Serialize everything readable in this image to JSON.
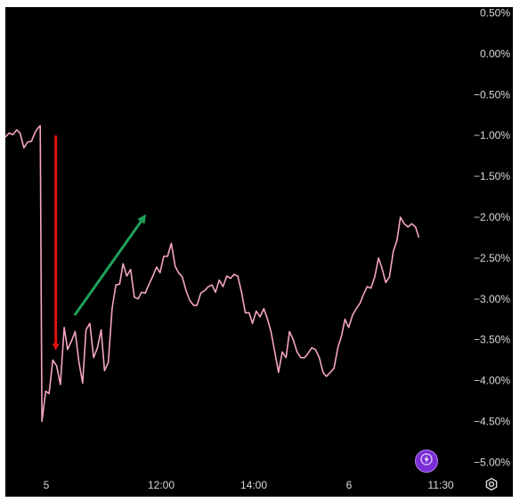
{
  "chart_data": {
    "type": "line",
    "title": "",
    "xlabel": "",
    "ylabel": "",
    "x_ticks": [
      "5",
      "12:00",
      "14:00",
      "6",
      "11:30"
    ],
    "y_ticks": [
      "0.50%",
      "0.00%",
      "−0.50%",
      "−1.00%",
      "−1.50%",
      "−2.00%",
      "−2.50%",
      "−3.00%",
      "−3.50%",
      "−4.00%",
      "−4.50%",
      "−5.00%"
    ],
    "ylim": [
      -5.4,
      0.55
    ],
    "x_range": [
      0,
      100
    ],
    "grid": false,
    "series": [
      {
        "color": "#f4a6c0",
        "points": [
          [
            0,
            -1.02
          ],
          [
            0.9,
            -0.97
          ],
          [
            1.8,
            -0.99
          ],
          [
            2.7,
            -0.93
          ],
          [
            3.5,
            -0.97
          ],
          [
            4.4,
            -1.15
          ],
          [
            5.3,
            -1.08
          ],
          [
            6.2,
            -1.07
          ],
          [
            7.1,
            -0.96
          ],
          [
            7.9,
            -0.9
          ],
          [
            8.3,
            -0.88
          ],
          [
            8.7,
            -4.5
          ],
          [
            9.6,
            -4.13
          ],
          [
            10.4,
            -4.16
          ],
          [
            11.3,
            -3.75
          ],
          [
            12.2,
            -3.82
          ],
          [
            13.1,
            -4.05
          ],
          [
            14.0,
            -3.35
          ],
          [
            14.8,
            -3.62
          ],
          [
            15.7,
            -3.52
          ],
          [
            16.6,
            -3.4
          ],
          [
            17.5,
            -3.77
          ],
          [
            18.4,
            -4.03
          ],
          [
            19.2,
            -3.38
          ],
          [
            20.1,
            -3.3
          ],
          [
            21.0,
            -3.72
          ],
          [
            21.9,
            -3.6
          ],
          [
            22.8,
            -3.38
          ],
          [
            23.6,
            -3.88
          ],
          [
            24.5,
            -3.78
          ],
          [
            25.4,
            -3.12
          ],
          [
            26.3,
            -2.83
          ],
          [
            27.2,
            -2.82
          ],
          [
            28.0,
            -2.57
          ],
          [
            28.9,
            -2.72
          ],
          [
            29.8,
            -2.64
          ],
          [
            30.7,
            -2.98
          ],
          [
            31.6,
            -3.0
          ],
          [
            32.4,
            -2.92
          ],
          [
            33.3,
            -2.93
          ],
          [
            34.2,
            -2.82
          ],
          [
            35.1,
            -2.72
          ],
          [
            36.0,
            -2.61
          ],
          [
            36.8,
            -2.68
          ],
          [
            37.7,
            -2.48
          ],
          [
            38.6,
            -2.48
          ],
          [
            39.5,
            -2.32
          ],
          [
            40.4,
            -2.6
          ],
          [
            41.2,
            -2.68
          ],
          [
            42.1,
            -2.73
          ],
          [
            43.0,
            -2.9
          ],
          [
            43.9,
            -3.02
          ],
          [
            44.8,
            -3.08
          ],
          [
            45.6,
            -3.08
          ],
          [
            46.5,
            -2.93
          ],
          [
            47.4,
            -2.9
          ],
          [
            48.3,
            -2.85
          ],
          [
            49.2,
            -2.83
          ],
          [
            50.0,
            -2.92
          ],
          [
            50.9,
            -2.77
          ],
          [
            51.8,
            -2.85
          ],
          [
            52.7,
            -2.72
          ],
          [
            53.6,
            -2.75
          ],
          [
            54.4,
            -2.7
          ],
          [
            55.3,
            -2.72
          ],
          [
            56.2,
            -2.92
          ],
          [
            57.1,
            -3.17
          ],
          [
            58.0,
            -3.17
          ],
          [
            58.8,
            -3.3
          ],
          [
            59.7,
            -3.15
          ],
          [
            60.6,
            -3.22
          ],
          [
            61.5,
            -3.12
          ],
          [
            62.4,
            -3.25
          ],
          [
            63.2,
            -3.4
          ],
          [
            64.1,
            -3.65
          ],
          [
            65.0,
            -3.9
          ],
          [
            65.9,
            -3.65
          ],
          [
            66.8,
            -3.72
          ],
          [
            67.6,
            -3.4
          ],
          [
            68.5,
            -3.5
          ],
          [
            69.4,
            -3.65
          ],
          [
            70.3,
            -3.72
          ],
          [
            71.2,
            -3.72
          ],
          [
            72.0,
            -3.67
          ],
          [
            72.9,
            -3.6
          ],
          [
            73.8,
            -3.62
          ],
          [
            74.7,
            -3.72
          ],
          [
            75.6,
            -3.9
          ],
          [
            76.4,
            -3.95
          ],
          [
            77.3,
            -3.9
          ],
          [
            78.2,
            -3.85
          ],
          [
            79.1,
            -3.6
          ],
          [
            80.0,
            -3.45
          ],
          [
            80.8,
            -3.25
          ],
          [
            81.7,
            -3.35
          ],
          [
            82.6,
            -3.2
          ],
          [
            83.5,
            -3.12
          ],
          [
            84.4,
            -3.05
          ],
          [
            85.2,
            -2.95
          ],
          [
            86.1,
            -2.85
          ],
          [
            87.0,
            -2.87
          ],
          [
            87.9,
            -2.73
          ],
          [
            88.8,
            -2.5
          ],
          [
            89.6,
            -2.62
          ],
          [
            90.5,
            -2.8
          ],
          [
            91.4,
            -2.73
          ],
          [
            92.3,
            -2.42
          ],
          [
            93.2,
            -2.28
          ],
          [
            94.0,
            -2.0
          ],
          [
            94.9,
            -2.08
          ],
          [
            95.8,
            -2.12
          ],
          [
            96.7,
            -2.08
          ],
          [
            97.6,
            -2.12
          ],
          [
            98.4,
            -2.25
          ]
        ]
      }
    ],
    "annotations": [
      {
        "type": "arrow",
        "color": "#e01010",
        "from": [
          12.0,
          -1.0
        ],
        "to": [
          12.0,
          -3.6
        ]
      },
      {
        "type": "arrow",
        "color": "#1fa05a",
        "from": [
          16.5,
          -3.2
        ],
        "to": [
          33.0,
          -2.0
        ]
      }
    ]
  },
  "toolbar": {
    "lightning_icon": "lightning-icon",
    "settings_icon": "gear-icon",
    "accent_color": "#7a2fd6"
  }
}
